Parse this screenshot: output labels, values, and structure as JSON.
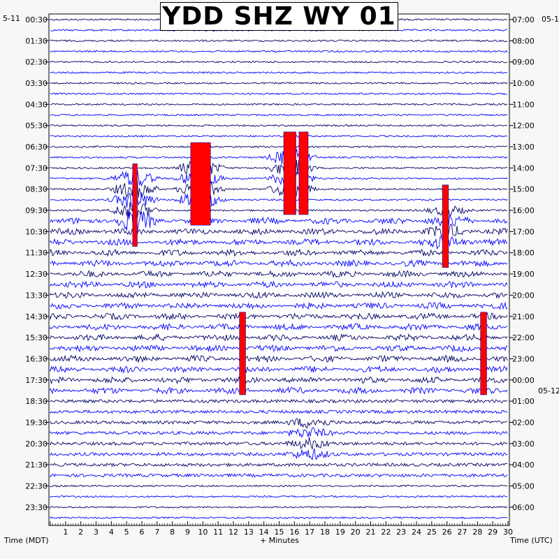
{
  "chart_data": {
    "type": "helicorder",
    "title": "YDD SHZ WY 01",
    "x_axis": {
      "label": "+ Minutes",
      "ticks": [
        "1",
        "2",
        "3",
        "4",
        "5",
        "6",
        "7",
        "8",
        "9",
        "10",
        "11",
        "12",
        "13",
        "14",
        "15",
        "16",
        "17",
        "18",
        "19",
        "20",
        "21",
        "22",
        "23",
        "24",
        "25",
        "26",
        "27",
        "28",
        "29",
        "30"
      ],
      "range": [
        0,
        30
      ]
    },
    "left_axis": {
      "label": "Time (MDT)",
      "date_label": "5-11",
      "ticks": [
        "00:30",
        "01:30",
        "02:30",
        "03:30",
        "04:30",
        "05:30",
        "06:30",
        "07:30",
        "08:30",
        "09:30",
        "10:30",
        "11:30",
        "12:30",
        "13:30",
        "14:30",
        "15:30",
        "16:30",
        "17:30",
        "18:30",
        "19:30",
        "20:30",
        "21:30",
        "22:30",
        "23:30"
      ]
    },
    "right_axis": {
      "label": "Time (UTC)",
      "date_label": "05-1",
      "date_label_2": "05-12",
      "ticks": [
        "07:00",
        "08:00",
        "09:00",
        "10:00",
        "11:00",
        "12:00",
        "13:00",
        "14:00",
        "15:00",
        "16:00",
        "17:00",
        "18:00",
        "19:00",
        "20:00",
        "21:00",
        "22:00",
        "23:00",
        "00:00",
        "01:00",
        "02:00",
        "03:00",
        "04:00",
        "05:00",
        "06:00"
      ]
    },
    "trace_rows": 48,
    "trace_colors": [
      "#000066",
      "#0000ff"
    ],
    "clip_color": "#ff0000",
    "grid": true,
    "clipped_events": [
      {
        "minute_start": 5.4,
        "minute_end": 5.7,
        "row_start": 14,
        "row_end": 21
      },
      {
        "minute_start": 9.2,
        "minute_end": 10.5,
        "row_start": 12,
        "row_end": 19
      },
      {
        "minute_start": 15.3,
        "minute_end": 16.1,
        "row_start": 11,
        "row_end": 18
      },
      {
        "minute_start": 16.3,
        "minute_end": 16.9,
        "row_start": 11,
        "row_end": 18
      },
      {
        "minute_start": 25.7,
        "minute_end": 26.1,
        "row_start": 16,
        "row_end": 23
      },
      {
        "minute_start": 12.4,
        "minute_end": 12.8,
        "row_start": 28,
        "row_end": 35
      },
      {
        "minute_start": 28.2,
        "minute_end": 28.6,
        "row_start": 28,
        "row_end": 35
      }
    ],
    "activity_bursts": [
      {
        "minute": 9.8,
        "rows": [
          14,
          17
        ],
        "amplitude": "large"
      },
      {
        "minute": 15.8,
        "rows": [
          13,
          16
        ],
        "amplitude": "large"
      },
      {
        "minute": 5.5,
        "rows": [
          15,
          19
        ],
        "amplitude": "large"
      },
      {
        "minute": 17.0,
        "rows": [
          38,
          41
        ],
        "amplitude": "medium"
      },
      {
        "minute": 26.0,
        "rows": [
          18,
          21
        ],
        "amplitude": "medium"
      }
    ]
  }
}
